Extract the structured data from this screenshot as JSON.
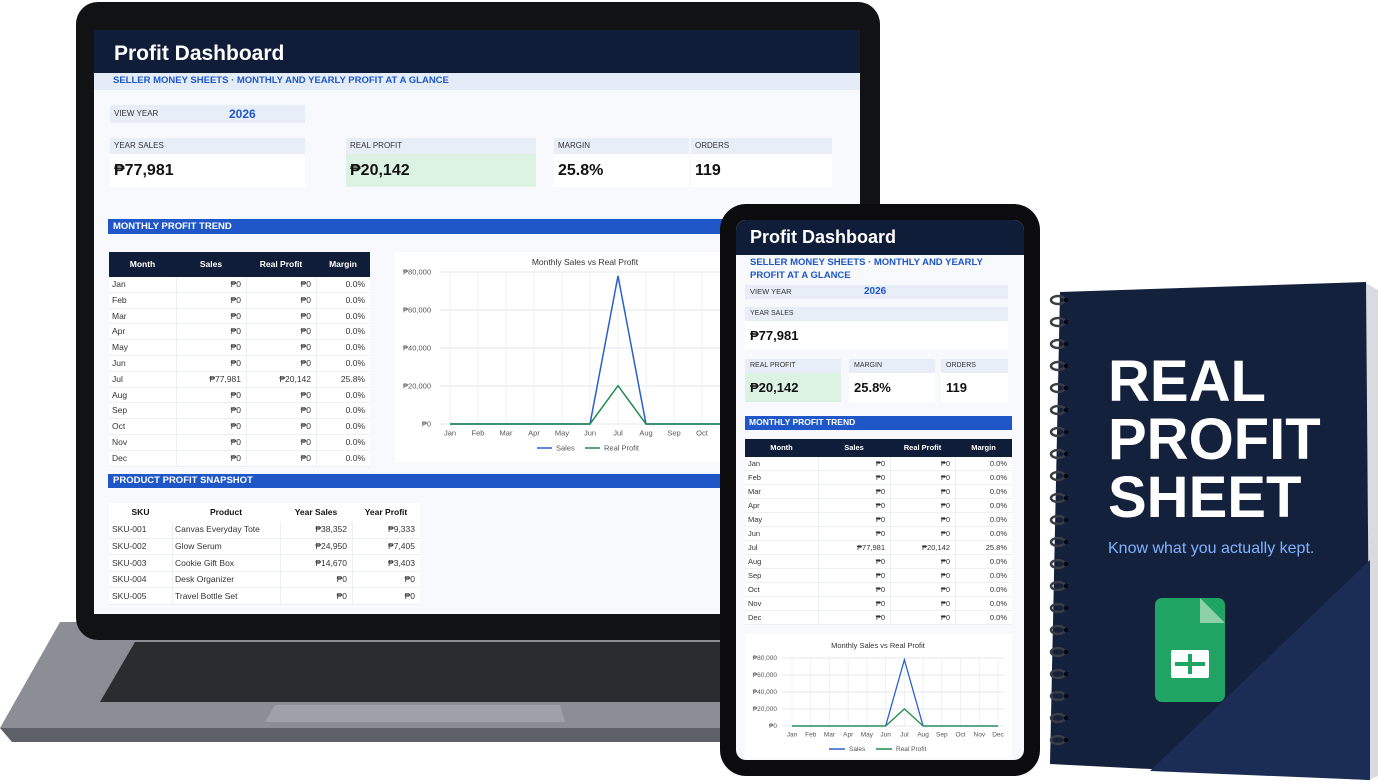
{
  "dashboard": {
    "title": "Profit Dashboard",
    "subtitle": "SELLER MONEY SHEETS · MONTHLY AND YEARLY PROFIT AT A GLANCE",
    "view_year": {
      "label": "VIEW YEAR",
      "value": "2026"
    },
    "kpis": [
      {
        "label": "YEAR SALES",
        "value": "₱77,981"
      },
      {
        "label": "REAL PROFIT",
        "value": "₱20,142"
      },
      {
        "label": "MARGIN",
        "value": "25.8%"
      },
      {
        "label": "ORDERS",
        "value": "119"
      }
    ],
    "trend": {
      "heading": "MONTHLY PROFIT TREND",
      "columns": [
        "Month",
        "Sales",
        "Real Profit",
        "Margin"
      ],
      "rows": [
        [
          "Jan",
          "₱0",
          "₱0",
          "0.0%"
        ],
        [
          "Feb",
          "₱0",
          "₱0",
          "0.0%"
        ],
        [
          "Mar",
          "₱0",
          "₱0",
          "0.0%"
        ],
        [
          "Apr",
          "₱0",
          "₱0",
          "0.0%"
        ],
        [
          "May",
          "₱0",
          "₱0",
          "0.0%"
        ],
        [
          "Jun",
          "₱0",
          "₱0",
          "0.0%"
        ],
        [
          "Jul",
          "₱77,981",
          "₱20,142",
          "25.8%"
        ],
        [
          "Aug",
          "₱0",
          "₱0",
          "0.0%"
        ],
        [
          "Sep",
          "₱0",
          "₱0",
          "0.0%"
        ],
        [
          "Oct",
          "₱0",
          "₱0",
          "0.0%"
        ],
        [
          "Nov",
          "₱0",
          "₱0",
          "0.0%"
        ],
        [
          "Dec",
          "₱0",
          "₱0",
          "0.0%"
        ]
      ]
    },
    "chart": {
      "type": "line",
      "title": "Monthly Sales vs Real Profit",
      "categories": [
        "Jan",
        "Feb",
        "Mar",
        "Apr",
        "May",
        "Jun",
        "Jul",
        "Aug",
        "Sep",
        "Oct",
        "Nov",
        "Dec"
      ],
      "series": [
        {
          "name": "Sales",
          "color": "#2b5fcf",
          "values": [
            0,
            0,
            0,
            0,
            0,
            0,
            77981,
            0,
            0,
            0,
            0,
            0
          ]
        },
        {
          "name": "Real Profit",
          "color": "#1f8a4c",
          "values": [
            0,
            0,
            0,
            0,
            0,
            0,
            20142,
            0,
            0,
            0,
            0,
            0
          ]
        }
      ],
      "ylim": [
        0,
        80000
      ],
      "yticks": [
        {
          "value": 0,
          "label": "₱0"
        },
        {
          "value": 20000,
          "label": "₱20,000"
        },
        {
          "value": 40000,
          "label": "₱40,000"
        },
        {
          "value": 60000,
          "label": "₱60,000"
        },
        {
          "value": 80000,
          "label": "₱80,000"
        }
      ],
      "grid": true
    },
    "products": {
      "heading": "PRODUCT PROFIT SNAPSHOT",
      "columns": [
        "SKU",
        "Product",
        "Year Sales",
        "Year Profit"
      ],
      "rows": [
        [
          "SKU-001",
          "Canvas Everyday Tote",
          "₱38,352",
          "₱9,333"
        ],
        [
          "SKU-002",
          "Glow Serum",
          "₱24,950",
          "₱7,405"
        ],
        [
          "SKU-003",
          "Cookie Gift Box",
          "₱14,670",
          "₱3,403"
        ],
        [
          "SKU-004",
          "Desk Organizer",
          "₱0",
          "₱0"
        ],
        [
          "SKU-005",
          "Travel Bottle Set",
          "₱0",
          "₱0"
        ]
      ]
    }
  },
  "notebook": {
    "title_lines": [
      "REAL",
      "PROFIT",
      "SHEET"
    ],
    "tagline": "Know what you actually kept."
  }
}
